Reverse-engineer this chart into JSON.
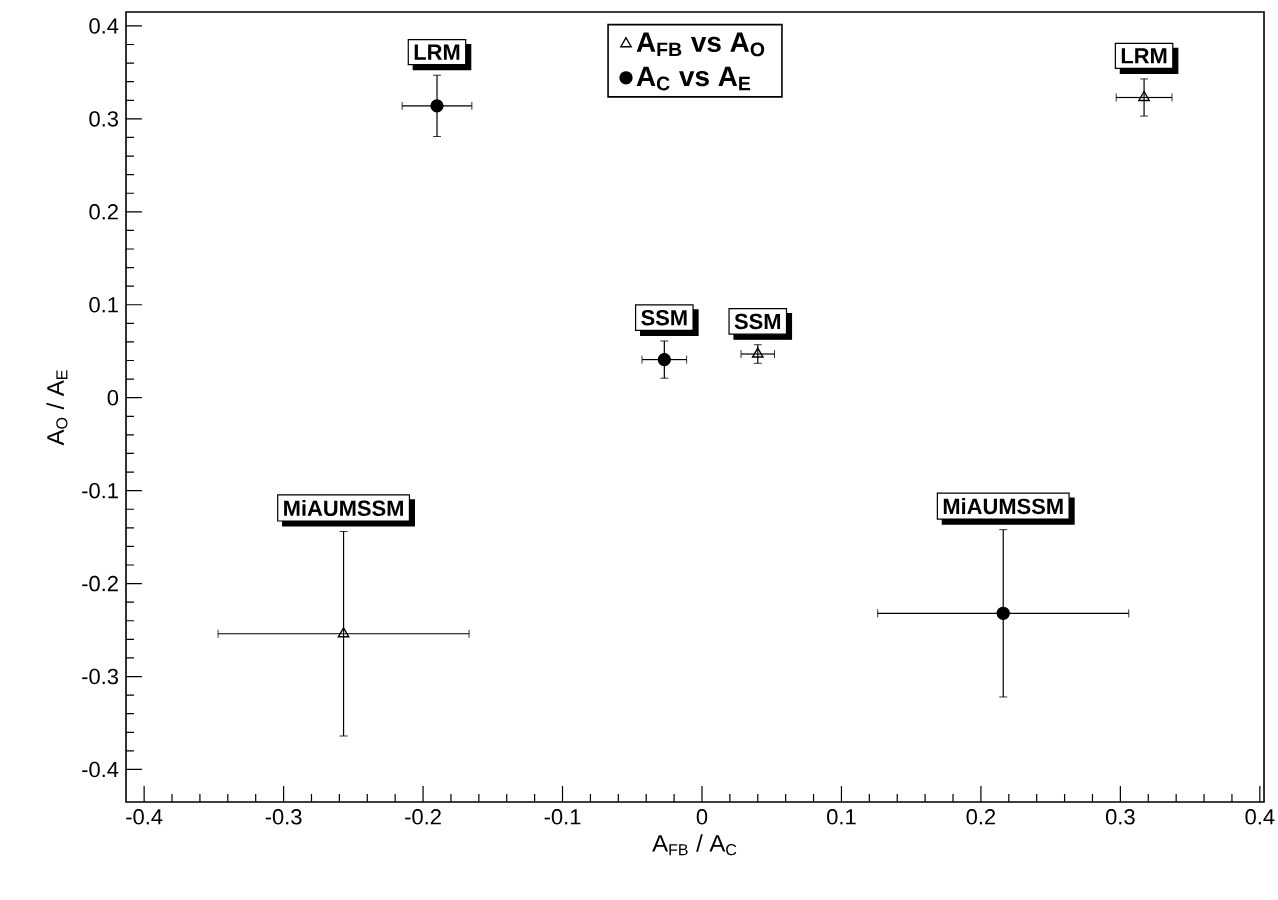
{
  "chart_data": {
    "type": "scatter",
    "xlabel": "A$_{FB}$ / A$_{C}$",
    "ylabel": "A$_{O}$ / A$_{E}$",
    "xlim": [
      -0.413,
      0.403
    ],
    "ylim": [
      -0.435,
      0.415
    ],
    "xticks": [
      -0.4,
      -0.3,
      -0.2,
      -0.1,
      0,
      0.1,
      0.2,
      0.3,
      0.4
    ],
    "yticks": [
      -0.4,
      -0.3,
      -0.2,
      -0.1,
      0,
      0.1,
      0.2,
      0.3,
      0.4
    ],
    "legend": "top",
    "series": [
      {
        "name": "A$_{FB}$ vs A$_{O}$",
        "color": "#000000",
        "marker": "triangle",
        "x": [
          0.317,
          0.04,
          -0.257
        ],
        "values": [
          0.323,
          0.047,
          -0.254
        ],
        "xerrors": [
          0.02,
          0.012,
          0.09
        ],
        "errors": [
          0.02,
          0.01,
          0.11
        ]
      },
      {
        "name": "A$_{C}$ vs A$_{E}$",
        "color": "#000000",
        "marker": "circle",
        "x": [
          -0.19,
          -0.027,
          0.216
        ],
        "values": [
          0.314,
          0.041,
          -0.232
        ],
        "xerrors": [
          0.025,
          0.016,
          0.09
        ],
        "errors": [
          0.033,
          0.02,
          0.09
        ]
      }
    ],
    "annotations": [
      {
        "text": "LRM",
        "x": -0.19,
        "y": 0.347
      },
      {
        "text": "LRM",
        "x": 0.317,
        "y": 0.343
      },
      {
        "text": "SSM",
        "x": -0.027,
        "y": 0.061
      },
      {
        "text": "SSM",
        "x": 0.04,
        "y": 0.057
      },
      {
        "text": "MiAUMSSM",
        "x": -0.257,
        "y": -0.144
      },
      {
        "text": "MiAUMSSM",
        "x": 0.216,
        "y": -0.142
      }
    ]
  }
}
